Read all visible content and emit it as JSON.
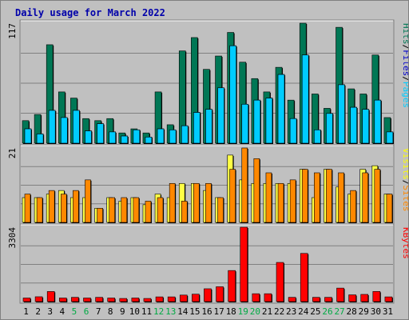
{
  "title": "Daily usage for March 2022",
  "chart_data": [
    {
      "type": "bar",
      "name": "hits-files-pages",
      "categories": [
        "1",
        "2",
        "3",
        "4",
        "5",
        "6",
        "7",
        "8",
        "9",
        "10",
        "11",
        "12",
        "13",
        "14",
        "15",
        "16",
        "17",
        "18",
        "19",
        "20",
        "21",
        "22",
        "23",
        "24",
        "25",
        "26",
        "27",
        "28",
        "29",
        "30",
        "31"
      ],
      "max_label": "117",
      "ylim": [
        0,
        117
      ],
      "legend": [
        "Pages",
        "Files",
        "Hits"
      ],
      "legend_colors": [
        "#00ccff",
        "#0000cc",
        "#007755"
      ],
      "series": [
        {
          "name": "Hits",
          "color": "#007755",
          "values": [
            22,
            28,
            96,
            50,
            44,
            24,
            22,
            24,
            10,
            14,
            10,
            50,
            18,
            90,
            103,
            72,
            85,
            108,
            79,
            63,
            50,
            74,
            42,
            117,
            48,
            34,
            113,
            53,
            48,
            86,
            25
          ]
        },
        {
          "name": "Files",
          "color": "#0000cc",
          "values": [
            14,
            9,
            32,
            25,
            32,
            12,
            19,
            11,
            7,
            13,
            6,
            14,
            13,
            17,
            30,
            33,
            54,
            95,
            38,
            42,
            44,
            67,
            24,
            86,
            13,
            29,
            57,
            35,
            33,
            42,
            11
          ]
        },
        {
          "name": "Pages",
          "color": "#00ccff",
          "values": [
            14,
            9,
            32,
            25,
            32,
            12,
            19,
            11,
            7,
            13,
            6,
            14,
            13,
            17,
            30,
            33,
            54,
            95,
            38,
            42,
            44,
            67,
            24,
            86,
            13,
            29,
            57,
            35,
            33,
            42,
            11
          ]
        }
      ]
    },
    {
      "type": "bar",
      "name": "visits-sites",
      "categories": [
        "1",
        "2",
        "3",
        "4",
        "5",
        "6",
        "7",
        "8",
        "9",
        "10",
        "11",
        "12",
        "13",
        "14",
        "15",
        "16",
        "17",
        "18",
        "19",
        "20",
        "21",
        "22",
        "23",
        "24",
        "25",
        "26",
        "27",
        "28",
        "29",
        "30",
        "31"
      ],
      "max_label": "21",
      "ylim": [
        0,
        21
      ],
      "legend": [
        "Sites",
        "Visits"
      ],
      "legend_colors": [
        "#ff8800",
        "#ffff00"
      ],
      "series": [
        {
          "name": "Visits",
          "color": "#ffff44",
          "values": [
            7,
            7,
            8,
            9,
            7,
            7,
            4,
            7,
            6,
            7,
            5,
            8,
            7,
            11,
            11,
            9,
            7,
            19,
            12,
            11,
            11,
            11,
            11,
            15,
            7,
            15,
            10,
            8,
            15,
            16,
            8
          ]
        },
        {
          "name": "Sites",
          "color": "#ff8800",
          "values": [
            8,
            7,
            9,
            8,
            9,
            12,
            4,
            7,
            7,
            7,
            6,
            7,
            11,
            6,
            11,
            11,
            7,
            15,
            21,
            18,
            14,
            11,
            12,
            15,
            14,
            15,
            14,
            9,
            14,
            15,
            8
          ]
        }
      ]
    },
    {
      "type": "bar",
      "name": "kbytes",
      "categories": [
        "1",
        "2",
        "3",
        "4",
        "5",
        "6",
        "7",
        "8",
        "9",
        "10",
        "11",
        "12",
        "13",
        "14",
        "15",
        "16",
        "17",
        "18",
        "19",
        "20",
        "21",
        "22",
        "23",
        "24",
        "25",
        "26",
        "27",
        "28",
        "29",
        "30",
        "31"
      ],
      "max_label": "3304",
      "ylim": [
        0,
        3304
      ],
      "legend": [
        "KBytes"
      ],
      "legend_colors": [
        "#ff0000"
      ],
      "series": [
        {
          "name": "KBytes",
          "color": "#ff0000",
          "values": [
            160,
            215,
            448,
            160,
            190,
            160,
            190,
            160,
            140,
            160,
            140,
            210,
            210,
            290,
            330,
            570,
            660,
            1380,
            3304,
            350,
            350,
            1740,
            190,
            2140,
            190,
            190,
            600,
            300,
            320,
            450,
            210
          ]
        }
      ]
    }
  ],
  "x_label_colors": {
    "weekday": "#000000",
    "weekend": "#00aa44",
    "weekend_days": [
      "5",
      "6",
      "12",
      "13",
      "19",
      "20",
      "26",
      "27"
    ]
  }
}
